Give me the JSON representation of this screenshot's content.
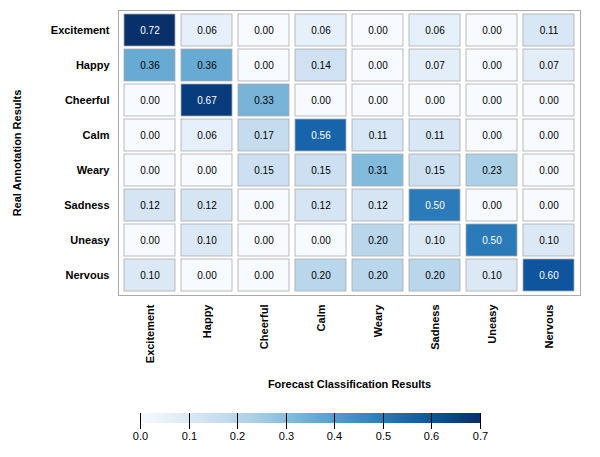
{
  "chart_data": {
    "type": "heatmap",
    "categories": [
      "Excitement",
      "Happy",
      "Cheerful",
      "Calm",
      "Weary",
      "Sadness",
      "Uneasy",
      "Nervous"
    ],
    "matrix": [
      [
        0.72,
        0.06,
        0,
        0.06,
        0,
        0.06,
        0,
        0.11
      ],
      [
        0.36,
        0.36,
        0,
        0.14,
        0,
        0.07,
        0,
        0.07
      ],
      [
        0,
        0.67,
        0.33,
        0,
        0,
        0,
        0,
        0
      ],
      [
        0,
        0.06,
        0.17,
        0.56,
        0.11,
        0.11,
        0,
        0
      ],
      [
        0,
        0,
        0.15,
        0.15,
        0.31,
        0.15,
        0.23,
        0
      ],
      [
        0.12,
        0.12,
        0,
        0.12,
        0.12,
        0.5,
        0,
        0
      ],
      [
        0,
        0.1,
        0,
        0,
        0.2,
        0.1,
        0.5,
        0.1
      ],
      [
        0.1,
        0,
        0,
        0.2,
        0.2,
        0.2,
        0.1,
        0.6
      ]
    ],
    "value_labels": [
      [
        "0.72",
        "0.06",
        "0.00",
        "0.06",
        "0.00",
        "0.06",
        "0.00",
        "0.11"
      ],
      [
        "0.36",
        "0.36",
        "0.00",
        "0.14",
        "0.00",
        "0.07",
        "0.00",
        "0.07"
      ],
      [
        "0.00",
        "0.67",
        "0.33",
        "0.00",
        "0.00",
        "0.00",
        "0.00",
        "0.00"
      ],
      [
        "0.00",
        "0.06",
        "0.17",
        "0.56",
        "0.11",
        "0.11",
        "0.00",
        "0.00"
      ],
      [
        "0.00",
        "0.00",
        "0.15",
        "0.15",
        "0.31",
        "0.15",
        "0.23",
        "0.00"
      ],
      [
        "0.12",
        "0.12",
        "0.00",
        "0.12",
        "0.12",
        "0.50",
        "0.00",
        "0.00"
      ],
      [
        "0.00",
        "0.10",
        "0.00",
        "0.00",
        "0.20",
        "0.10",
        "0.50",
        "0.10"
      ],
      [
        "0.10",
        "0.00",
        "0.00",
        "0.20",
        "0.20",
        "0.20",
        "0.10",
        "0.60"
      ]
    ],
    "xlabel": "Forecast Classification Results",
    "ylabel": "Real Annotation Results",
    "color": "Blues",
    "colorbar_range": [
      0,
      0.7
    ],
    "colorbar_ticks": [
      {
        "value": 0,
        "label": "0.0"
      },
      0.1,
      0.2,
      0.3,
      0.4,
      0.5,
      0.6,
      0.7
    ],
    "data_labels": true,
    "grid": true
  }
}
